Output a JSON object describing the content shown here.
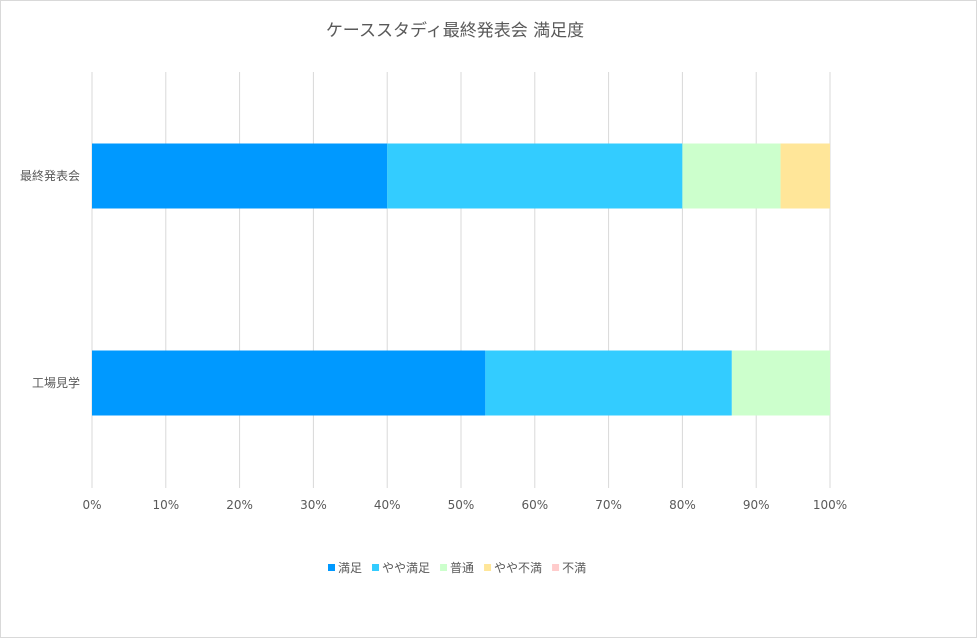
{
  "chart_data": {
    "type": "bar",
    "orientation": "horizontal",
    "stacked": "percent",
    "title": "ケーススタディ最終発表会 満足度",
    "categories": [
      "最終発表会",
      "工場見学"
    ],
    "series": [
      {
        "name": "満足",
        "color": "#0099ff",
        "values": [
          0.4,
          0.533
        ]
      },
      {
        "name": "やや満足",
        "color": "#33ccff",
        "values": [
          0.4,
          0.334
        ]
      },
      {
        "name": "普通",
        "color": "#ccffcc",
        "values": [
          0.133,
          0.133
        ]
      },
      {
        "name": "やや不満",
        "color": "#ffe699",
        "values": [
          0.067,
          0
        ]
      },
      {
        "name": "不満",
        "color": "#ffcccc",
        "values": [
          0,
          0
        ]
      }
    ],
    "xlim": [
      0,
      1
    ],
    "x_ticks": [
      "0%",
      "10%",
      "20%",
      "30%",
      "40%",
      "50%",
      "60%",
      "70%",
      "80%",
      "90%",
      "100%"
    ],
    "grid": true,
    "legend_position": "bottom"
  }
}
